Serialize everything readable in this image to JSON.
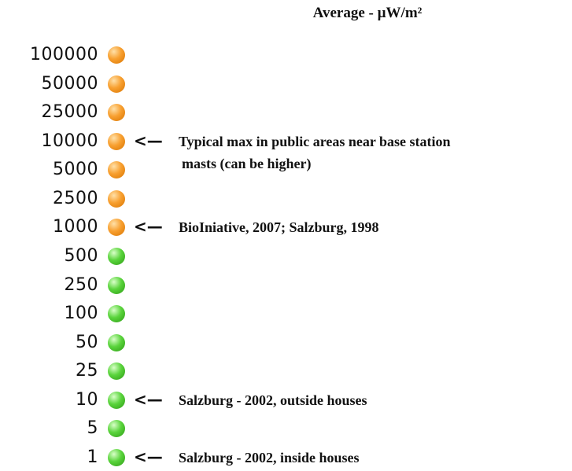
{
  "title": "Average - µW/m²",
  "levels": [
    {
      "label": "100000",
      "color": "orange"
    },
    {
      "label": "50000",
      "color": "orange"
    },
    {
      "label": "25000",
      "color": "orange"
    },
    {
      "label": "10000",
      "color": "orange",
      "arrow": "<—",
      "note": [
        "Typical max in public areas near base station",
        "masts (can be higher)"
      ]
    },
    {
      "label": "5000",
      "color": "orange"
    },
    {
      "label": "2500",
      "color": "orange"
    },
    {
      "label": "1000",
      "color": "orange",
      "arrow": "<—",
      "note": [
        "BioIniative, 2007; Salzburg, 1998"
      ]
    },
    {
      "label": "500",
      "color": "green"
    },
    {
      "label": "250",
      "color": "green"
    },
    {
      "label": "100",
      "color": "green"
    },
    {
      "label": "50",
      "color": "green"
    },
    {
      "label": "25",
      "color": "green"
    },
    {
      "label": "10",
      "color": "green",
      "arrow": "<—",
      "note": [
        "Salzburg - 2002, outside houses"
      ]
    },
    {
      "label": "5",
      "color": "green"
    },
    {
      "label": "1",
      "color": "green",
      "arrow": "<—",
      "note": [
        "Salzburg - 2002, inside houses"
      ]
    }
  ]
}
